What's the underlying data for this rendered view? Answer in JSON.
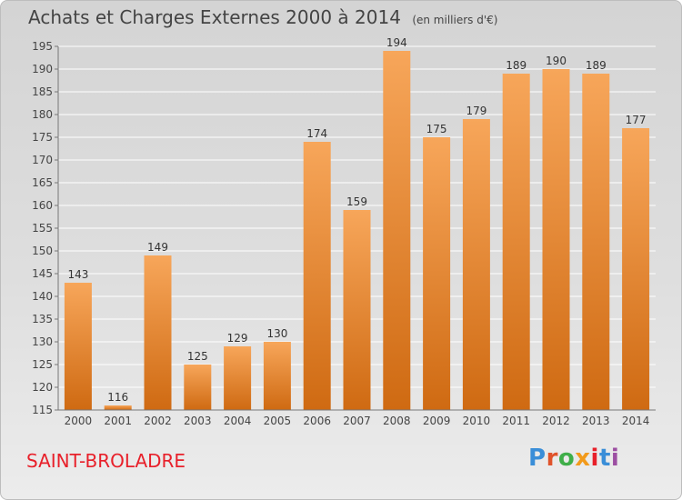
{
  "header": {
    "title": "Achats et Charges Externes 2000 à 2014",
    "unit": "(en milliers d'€)"
  },
  "footer": {
    "town": "SAINT-BROLADRE",
    "logo_text": "Proxiti",
    "logo_colors": [
      "#3a8ed8",
      "#e0532b",
      "#3fae49",
      "#f29a1b",
      "#e8202a",
      "#3a8ed8",
      "#9c4fa2"
    ]
  },
  "chart_data": {
    "type": "bar",
    "categories": [
      "2000",
      "2001",
      "2002",
      "2003",
      "2004",
      "2005",
      "2006",
      "2007",
      "2008",
      "2009",
      "2010",
      "2011",
      "2012",
      "2013",
      "2014"
    ],
    "values": [
      143,
      116,
      149,
      125,
      129,
      130,
      174,
      159,
      194,
      175,
      179,
      189,
      190,
      189,
      177
    ],
    "ylim": [
      115,
      195
    ],
    "yticks": [
      115,
      120,
      125,
      130,
      135,
      140,
      145,
      150,
      155,
      160,
      165,
      170,
      175,
      180,
      185,
      190,
      195
    ],
    "grid": true,
    "bar_color_top": "#f7a65a",
    "bar_color_bottom": "#cf6a12"
  }
}
